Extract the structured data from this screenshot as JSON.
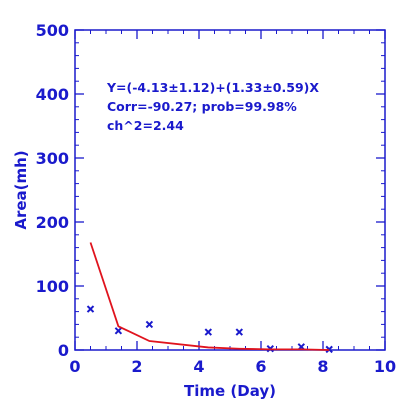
{
  "chart_data": {
    "type": "scatter",
    "title": "",
    "xlabel": "Time (Day)",
    "ylabel": "Area(mh)",
    "xlim": [
      0,
      10
    ],
    "ylim": [
      0,
      500
    ],
    "x_ticks": [
      "0",
      "2",
      "4",
      "6",
      "8",
      "10"
    ],
    "y_ticks": [
      "0",
      "100",
      "200",
      "300",
      "400",
      "500"
    ],
    "grid": false,
    "axis_color": "#1a1acc",
    "series": [
      {
        "marker": "x",
        "color": "#1a1acc",
        "x": [
          0.5,
          1.4,
          2.4,
          4.3,
          5.3,
          6.3,
          7.3,
          8.2
        ],
        "y": [
          64,
          30,
          40,
          28,
          28,
          2,
          5,
          1
        ]
      },
      {
        "type": "line",
        "color": "#e0141e",
        "x": [
          0.5,
          1.4,
          2.4,
          4.3,
          5.3,
          6.3,
          7.3,
          8.2
        ],
        "y": [
          168,
          37,
          14,
          4,
          2,
          1,
          1,
          0
        ]
      }
    ],
    "annotations": [
      "Y=(-4.13±1.12)+(1.33±0.59)X",
      "Corr=-90.27;   prob=99.98%",
      "ch^2=2.44"
    ]
  }
}
